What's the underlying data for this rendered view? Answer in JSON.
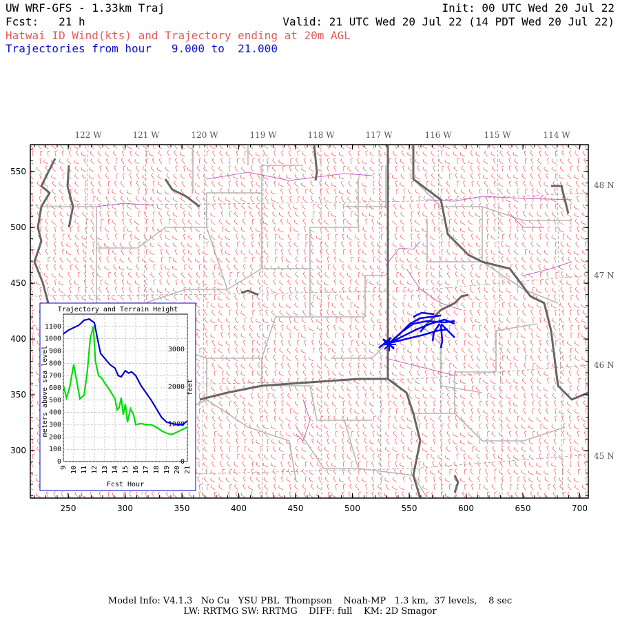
{
  "header": {
    "title": "UW WRF-GFS - 1.33km Traj",
    "init": "Init: 00 UTC Wed 20 Jul 22",
    "fcst": "Fcst:   21 h",
    "valid": "Valid: 21 UTC Wed 20 Jul 22 (14 PDT Wed 20 Jul 22)",
    "subtitle": "Hatwai ID Wind(kts) and Trajectory ending at 20m AGL",
    "traj_range": "Trajectories from hour   9.000 to  21.000"
  },
  "map": {
    "x_ticks": [
      "250",
      "300",
      "350",
      "400",
      "450",
      "500",
      "550",
      "600",
      "650",
      "700"
    ],
    "y_ticks": [
      "550",
      "500",
      "450",
      "400",
      "350",
      "300"
    ],
    "lon_labels": [
      "122 W",
      "121 W",
      "120 W",
      "119 W",
      "118 W",
      "117 W",
      "116 W",
      "115 W",
      "114 W"
    ],
    "lat_labels": [
      "48 N",
      "47 N",
      "46 N",
      "45 N"
    ],
    "colors": {
      "wind": "#ee5555",
      "traj": "#0000ee",
      "state": "#666666",
      "county": "#b0b0b0",
      "road": "#cc66cc"
    }
  },
  "inset": {
    "title": "Trajectory and Terrain Height",
    "xlabel": "Fcst Hour",
    "ylabel_left": "meters above sea level",
    "ylabel_right": "feet",
    "x_ticks": [
      "9",
      "10",
      "11",
      "12",
      "13",
      "14",
      "15",
      "16",
      "17",
      "18",
      "19",
      "20",
      "21"
    ],
    "y_ticks_m": [
      "0",
      "100",
      "200",
      "300",
      "400",
      "500",
      "600",
      "700",
      "800",
      "900",
      "1000",
      "1100"
    ],
    "y_ticks_ft": [
      "0",
      "1000",
      "2000",
      "3000"
    ],
    "chart_data": {
      "type": "line",
      "xlim": [
        9,
        21
      ],
      "ylim": [
        0,
        1200
      ],
      "series": [
        {
          "color": "#0000cc",
          "x": [
            9,
            9.5,
            10,
            10.5,
            11,
            11.5,
            12,
            12.3,
            12.6,
            13,
            13.5,
            14,
            14.3,
            14.6,
            15,
            15.3,
            15.6,
            16,
            16.5,
            17,
            17.5,
            18,
            18.5,
            19,
            19.5,
            20,
            20.5,
            21
          ],
          "y": [
            1040,
            1070,
            1090,
            1110,
            1150,
            1160,
            1130,
            1000,
            880,
            840,
            790,
            760,
            700,
            690,
            740,
            720,
            730,
            700,
            620,
            560,
            500,
            430,
            360,
            320,
            310,
            300,
            300,
            330
          ]
        },
        {
          "color": "#00dd00",
          "x": [
            9,
            9.3,
            9.6,
            10,
            10.3,
            10.6,
            11,
            11.3,
            11.6,
            11.9,
            12.1,
            12.4,
            12.7,
            13,
            13.5,
            14,
            14.2,
            14.4,
            14.6,
            14.8,
            15,
            15.2,
            15.5,
            15.8,
            16,
            16.5,
            17,
            17.5,
            18,
            18.5,
            19,
            19.5,
            20,
            20.5,
            21
          ],
          "y": [
            620,
            520,
            600,
            790,
            650,
            510,
            540,
            720,
            1000,
            1100,
            820,
            700,
            680,
            640,
            580,
            510,
            420,
            440,
            520,
            380,
            470,
            320,
            430,
            380,
            300,
            310,
            300,
            300,
            280,
            250,
            230,
            220,
            240,
            260,
            280
          ]
        }
      ]
    }
  },
  "footer": {
    "line1": "Model Info: V4.1.3   No Cu   YSU PBL  Thompson    Noah-MP   1.3 km,  37 levels,    8 sec",
    "line2": "LW: RRTMG SW: RRTMG    DIFF: full    KM: 2D Smagor"
  }
}
